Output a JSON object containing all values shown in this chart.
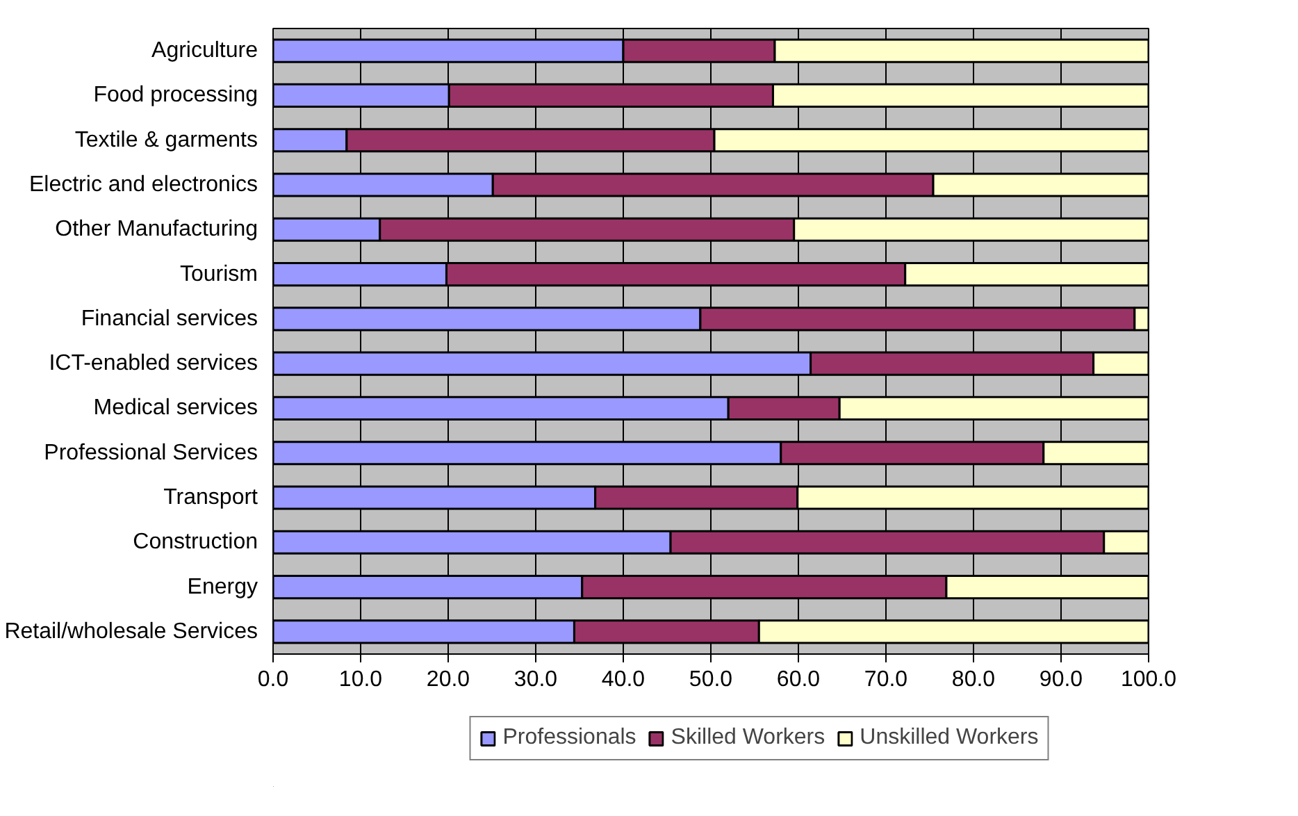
{
  "chart_data": {
    "type": "bar",
    "orientation": "horizontal",
    "stacked": true,
    "categories": [
      "Agriculture",
      "Food processing",
      "Textile & garments",
      "Electric and electronics",
      "Other Manufacturing",
      "Tourism",
      "Financial services",
      "ICT-enabled services",
      "Medical services",
      "Professional Services",
      "Transport",
      "Construction",
      "Energy",
      "Retail/wholesale Services"
    ],
    "series": [
      {
        "name": "Professionals",
        "color": "#9999ff",
        "values": [
          40.0,
          20.1,
          8.4,
          25.1,
          12.2,
          19.8,
          48.8,
          61.4,
          52.0,
          58.0,
          36.8,
          45.4,
          35.3,
          34.4
        ]
      },
      {
        "name": "Skilled Workers",
        "color": "#993366",
        "values": [
          17.3,
          37.0,
          42.0,
          50.3,
          47.3,
          52.4,
          49.6,
          32.3,
          12.7,
          30.0,
          23.1,
          49.5,
          41.6,
          21.1
        ]
      },
      {
        "name": "Unskilled Workers",
        "color": "#ffffcc",
        "values": [
          42.7,
          42.9,
          49.6,
          24.6,
          40.5,
          27.8,
          1.6,
          6.3,
          35.3,
          12.0,
          40.1,
          5.1,
          23.1,
          44.5
        ]
      }
    ],
    "xlim": [
      0,
      100
    ],
    "xticks": [
      {
        "value": 0,
        "label": "0.0"
      },
      {
        "value": 10,
        "label": "10.0"
      },
      {
        "value": 20,
        "label": "20.0"
      },
      {
        "value": 30,
        "label": "30.0"
      },
      {
        "value": 40,
        "label": "40.0"
      },
      {
        "value": 50,
        "label": "50.0"
      },
      {
        "value": 60,
        "label": "60.0"
      },
      {
        "value": 70,
        "label": "70.0"
      },
      {
        "value": 80,
        "label": "80.0"
      },
      {
        "value": 90,
        "label": "90.0"
      },
      {
        "value": 100,
        "label": "100.0"
      }
    ],
    "grid": "x",
    "legend": "bottom"
  }
}
